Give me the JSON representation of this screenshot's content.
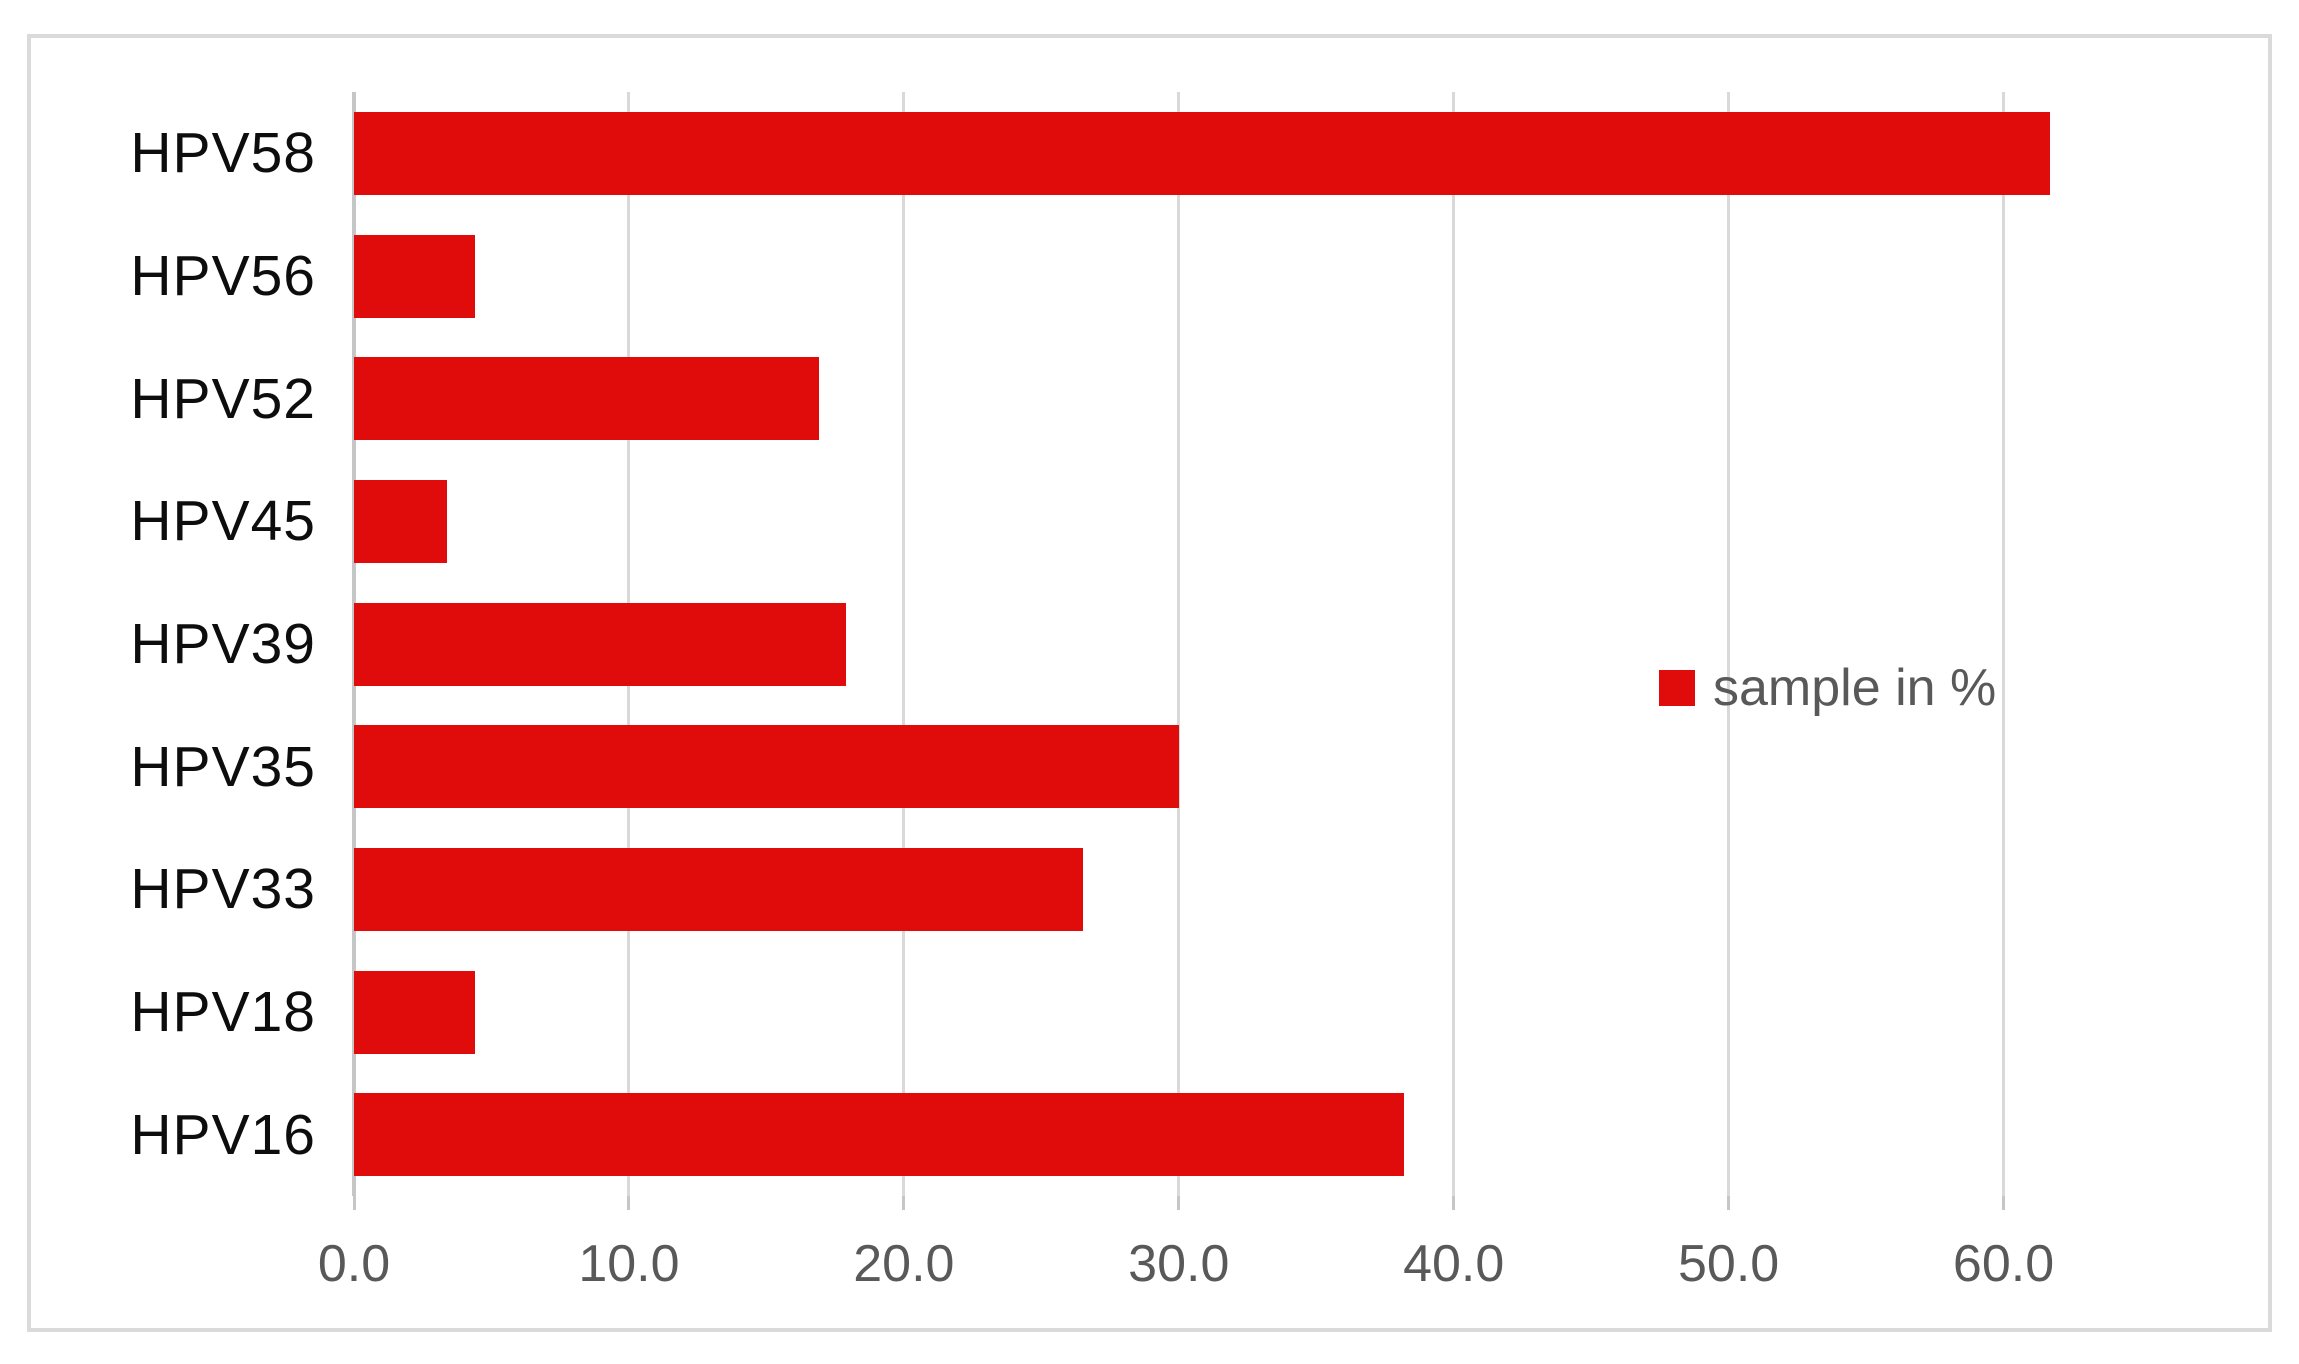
{
  "chart_data": {
    "type": "bar",
    "orientation": "horizontal",
    "title": "",
    "xlabel": "",
    "ylabel": "",
    "categories": [
      "HPV58",
      "HPV56",
      "HPV52",
      "HPV45",
      "HPV39",
      "HPV35",
      "HPV33",
      "HPV18",
      "HPV16"
    ],
    "categories_order": "top-to-bottom",
    "series": [
      {
        "name": "sample in %",
        "values": [
          61.7,
          4.4,
          16.9,
          3.4,
          17.9,
          30.0,
          26.5,
          4.4,
          38.2
        ]
      }
    ],
    "x_ticks": [
      "0.0",
      "10.0",
      "20.0",
      "30.0",
      "40.0",
      "50.0",
      "60.0"
    ],
    "x_tick_values": [
      0,
      10,
      20,
      30,
      40,
      50,
      60
    ],
    "xlim": [
      0,
      65
    ],
    "grid": "vertical-major-gridlines",
    "legend": {
      "label": "sample in %",
      "position": "center-right-overlay"
    },
    "colors": {
      "bar": "#e00b0b",
      "gridline": "#d9d9d9",
      "axis_line": "#c6c6c6",
      "tick_mark": "#c6c6c6",
      "tick_label": "#595959",
      "category_label": "#0d0d0d",
      "legend_text": "#595959",
      "legend_marker": "#e00b0b",
      "frame_border": "#dadada",
      "background": "#ffffff"
    }
  }
}
